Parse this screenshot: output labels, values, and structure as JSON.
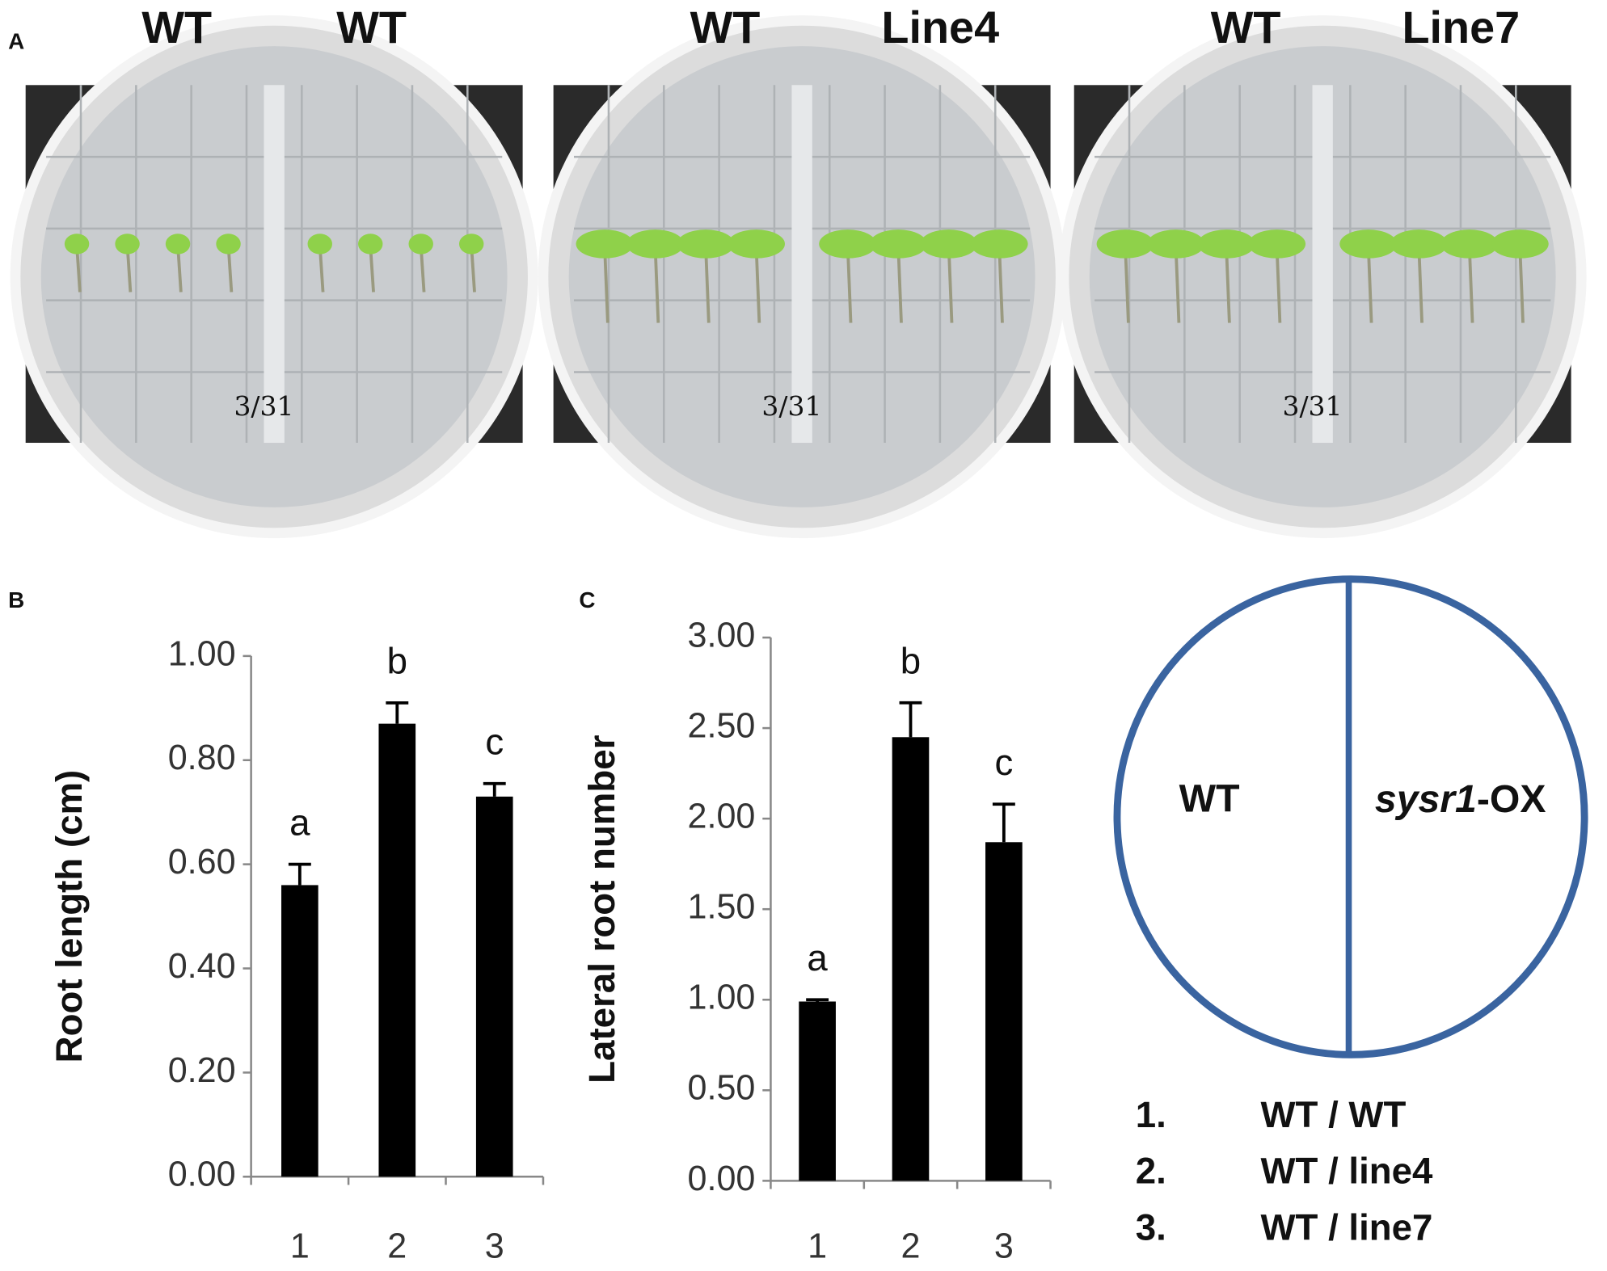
{
  "panels": {
    "a": {
      "label": "A",
      "plates": [
        {
          "left": "WT",
          "right": "WT",
          "note": "3/31"
        },
        {
          "left": "WT",
          "right": "Line4",
          "note": "3/31"
        },
        {
          "left": "WT",
          "right": "Line7",
          "note": "3/31"
        }
      ]
    },
    "b": {
      "label": "B"
    },
    "c": {
      "label": "C"
    },
    "diagram": {
      "left": "WT",
      "right_italic": "sysr1",
      "right_rest": "-OX",
      "legend": [
        {
          "num": "1.",
          "text": "WT / WT"
        },
        {
          "num": "2.",
          "text": "WT / line4"
        },
        {
          "num": "3.",
          "text": "WT / line7"
        }
      ]
    }
  },
  "chart_data": [
    {
      "type": "bar",
      "y_label": "Root length (cm)",
      "categories": [
        "1",
        "2",
        "3"
      ],
      "values": [
        0.56,
        0.87,
        0.73
      ],
      "errors": [
        0.04,
        0.04,
        0.025
      ],
      "annotations": [
        "a",
        "b",
        "c"
      ],
      "color": "#000000",
      "ylim": [
        0,
        1
      ],
      "yticks": [
        {
          "value": 0,
          "label": "0.00"
        },
        {
          "value": 0.2,
          "label": "0.20"
        },
        {
          "value": 0.4,
          "label": "0.40"
        },
        {
          "value": 0.6,
          "label": "0.60"
        },
        {
          "value": 0.8,
          "label": "0.80"
        },
        {
          "value": 1,
          "label": "1.00"
        }
      ],
      "grid": false
    },
    {
      "type": "bar",
      "y_label": "Lateral root number",
      "categories": [
        "1",
        "2",
        "3"
      ],
      "values": [
        0.99,
        2.45,
        1.87
      ],
      "errors": [
        0.01,
        0.19,
        0.21
      ],
      "annotations": [
        "a",
        "b",
        "c"
      ],
      "color": "#000000",
      "ylim": [
        0,
        3
      ],
      "yticks": [
        {
          "value": 0,
          "label": "0.00"
        },
        {
          "value": 0.5,
          "label": "0.50"
        },
        {
          "value": 1,
          "label": "1.00"
        },
        {
          "value": 1.5,
          "label": "1.50"
        },
        {
          "value": 2,
          "label": "2.00"
        },
        {
          "value": 2.5,
          "label": "2.50"
        },
        {
          "value": 3,
          "label": "3.00"
        }
      ],
      "grid": false
    }
  ]
}
